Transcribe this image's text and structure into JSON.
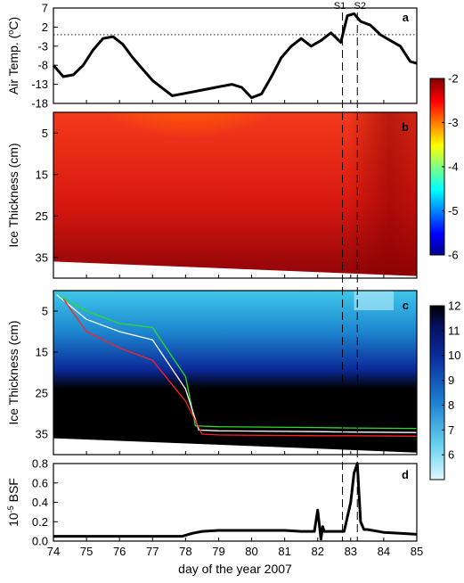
{
  "chart_data": [
    {
      "panel": "a",
      "type": "line",
      "ylabel": "Air Temp. (°C)",
      "ylabel_main": "Air Temp. (",
      "ylabel_sup": "o",
      "ylabel_tail": "C)",
      "xlim": [
        74,
        85
      ],
      "ylim": [
        -18,
        7
      ],
      "yticks": [
        7,
        2,
        -3,
        -8,
        -13,
        -18
      ],
      "reference_line_y": 0,
      "x": [
        74,
        74.3,
        74.6,
        74.9,
        75.2,
        75.5,
        75.8,
        76.1,
        76.4,
        76.7,
        77.0,
        77.3,
        77.6,
        77.9,
        78.2,
        78.5,
        78.8,
        79.1,
        79.4,
        79.7,
        80.0,
        80.3,
        80.6,
        80.9,
        81.2,
        81.5,
        81.8,
        82.1,
        82.4,
        82.7,
        82.9,
        83.1,
        83.3,
        83.6,
        83.9,
        84.2,
        84.5,
        84.8,
        85
      ],
      "y": [
        -8,
        -11,
        -10.5,
        -8,
        -4,
        -1,
        -0.5,
        -2.5,
        -6,
        -9,
        -12,
        -14,
        -16,
        -15.5,
        -15,
        -14.5,
        -14,
        -13.5,
        -13,
        -13.8,
        -16.5,
        -15.5,
        -11,
        -6,
        -3,
        -1,
        -3,
        -1.5,
        0.5,
        -2,
        5,
        5.5,
        3.5,
        2.5,
        0,
        -1.5,
        -3,
        -7,
        -7.5
      ]
    },
    {
      "panel": "b",
      "type": "heatmap",
      "ylabel": "Ice Thickness (cm)",
      "xlim": [
        74,
        85
      ],
      "ylim": [
        0,
        40
      ],
      "yticks": [
        5,
        15,
        25,
        35
      ],
      "colorbar": {
        "ticks": [
          -2,
          -3,
          -4,
          -5,
          -6
        ],
        "range": [
          -6,
          -2
        ],
        "colormap": "jet"
      },
      "ice_bottom_cm": {
        "x": [
          74,
          85
        ],
        "y": [
          36,
          39.5
        ]
      }
    },
    {
      "panel": "c",
      "type": "heatmap",
      "ylabel": "Ice Thickness (cm)",
      "xlim": [
        74,
        85
      ],
      "ylim": [
        0,
        40
      ],
      "yticks": [
        5,
        15,
        25,
        35
      ],
      "colorbar": {
        "ticks": [
          12,
          11,
          10,
          9,
          8,
          7,
          6
        ],
        "range": [
          5,
          12
        ],
        "colormap": "blue-to-black"
      },
      "ice_bottom_cm": {
        "x": [
          74,
          85
        ],
        "y": [
          36,
          39.5
        ]
      },
      "contours": [
        {
          "color": "#2bdc2b",
          "x": [
            74.1,
            75,
            76,
            77,
            78,
            78.3,
            79,
            82,
            83,
            85
          ],
          "y": [
            1,
            5,
            8,
            9,
            21,
            33,
            33.2,
            33.4,
            33.5,
            33.6
          ]
        },
        {
          "color": "#ffffff",
          "x": [
            74.1,
            75,
            76,
            77,
            78,
            78.4,
            79,
            82,
            83,
            85
          ],
          "y": [
            1,
            7,
            10,
            12,
            24,
            34,
            34.2,
            34.4,
            34.5,
            34.6
          ]
        },
        {
          "color": "#ff2020",
          "x": [
            74.3,
            75,
            76,
            77,
            78,
            78.5,
            79,
            82,
            83,
            85
          ],
          "y": [
            2,
            10,
            14,
            17,
            27,
            35,
            35.2,
            35.4,
            35.4,
            35.5
          ]
        }
      ]
    },
    {
      "panel": "d",
      "type": "line",
      "xlabel": "day of the year 2007",
      "ylabel": "10^-5 BSF",
      "ylabel_base": "10",
      "ylabel_sup": "-5",
      "ylabel_tail": " BSF",
      "xlim": [
        74,
        85
      ],
      "ylim": [
        0,
        0.8
      ],
      "yticks": [
        0.8,
        0.6,
        0.4,
        0.2,
        0
      ],
      "xticks": [
        74,
        75,
        76,
        77,
        78,
        79,
        80,
        81,
        82,
        83,
        84,
        85
      ],
      "x": [
        74,
        75,
        76,
        77,
        77.9,
        78.2,
        78.5,
        79,
        79.5,
        80,
        80.5,
        81,
        81.5,
        81.9,
        82.0,
        82.1,
        82.15,
        82.2,
        82.4,
        82.8,
        83.0,
        83.1,
        83.2,
        83.3,
        83.4,
        83.5,
        84,
        84.5,
        85
      ],
      "y": [
        0.05,
        0.05,
        0.05,
        0.05,
        0.05,
        0.08,
        0.1,
        0.11,
        0.11,
        0.11,
        0.11,
        0.11,
        0.1,
        0.1,
        0.32,
        0.02,
        0.15,
        0.1,
        0.1,
        0.1,
        0.4,
        0.7,
        0.8,
        0.2,
        0.12,
        0.12,
        0.09,
        0.08,
        0.07
      ]
    }
  ],
  "events": [
    {
      "label": "S1",
      "x": 82.75
    },
    {
      "label": "S2",
      "x": 83.2
    }
  ],
  "panel_tags": [
    "a",
    "b",
    "c",
    "d"
  ]
}
